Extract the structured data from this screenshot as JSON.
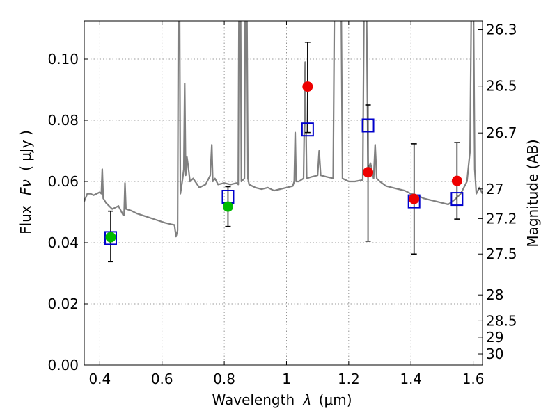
{
  "chart_data": {
    "type": "scatter",
    "xlabel_prefix": "Wavelength",
    "xlabel_symbol": "λ",
    "xlabel_unit": "(μm)",
    "ylabel_prefix": "Flux",
    "ylabel_symbol": "Fν",
    "ylabel_unit": "( μJy )",
    "y2label": "Magnitude (AB)",
    "xlim": [
      0.35,
      1.63
    ],
    "ylim": [
      0.0,
      0.1125
    ],
    "grid": true,
    "x_ticks": [
      0.4,
      0.6,
      0.8,
      1.0,
      1.2,
      1.4,
      1.6
    ],
    "x_tick_labels": [
      "0.4",
      "0.6",
      "0.8",
      "1",
      "1.2",
      "1.4",
      "1.6"
    ],
    "y_ticks": [
      0.0,
      0.02,
      0.04,
      0.06,
      0.08,
      0.1
    ],
    "y_tick_labels": [
      "0.00",
      "0.02",
      "0.04",
      "0.06",
      "0.08",
      "0.10"
    ],
    "mag_ticks": [
      26.3,
      26.5,
      26.7,
      27.0,
      27.2,
      27.5,
      28.0,
      28.5,
      29.0,
      30.0
    ],
    "mag_tick_labels": [
      "26.3",
      "26.5",
      "26.7",
      "27",
      "27.2",
      "27.5",
      "28",
      "28.5",
      "29",
      "30"
    ],
    "colors": {
      "model": "#808080",
      "green": "#00bb00",
      "red": "#ee0000",
      "square": "#0000cc",
      "grid": "#777777"
    },
    "model_spectrum": [
      [
        0.35,
        0.0535
      ],
      [
        0.36,
        0.056
      ],
      [
        0.37,
        0.056
      ],
      [
        0.38,
        0.0555
      ],
      [
        0.39,
        0.056
      ],
      [
        0.4,
        0.0565
      ],
      [
        0.405,
        0.056
      ],
      [
        0.408,
        0.064
      ],
      [
        0.411,
        0.0545
      ],
      [
        0.42,
        0.053
      ],
      [
        0.44,
        0.051
      ],
      [
        0.46,
        0.052
      ],
      [
        0.475,
        0.049
      ],
      [
        0.478,
        0.049
      ],
      [
        0.481,
        0.0595
      ],
      [
        0.484,
        0.051
      ],
      [
        0.5,
        0.0505
      ],
      [
        0.52,
        0.0495
      ],
      [
        0.55,
        0.0485
      ],
      [
        0.58,
        0.0475
      ],
      [
        0.61,
        0.0465
      ],
      [
        0.63,
        0.046
      ],
      [
        0.64,
        0.0458
      ],
      [
        0.645,
        0.042
      ],
      [
        0.65,
        0.044
      ],
      [
        0.653,
        0.13
      ],
      [
        0.656,
        0.13
      ],
      [
        0.659,
        0.056
      ],
      [
        0.665,
        0.06
      ],
      [
        0.67,
        0.064
      ],
      [
        0.673,
        0.092
      ],
      [
        0.676,
        0.062
      ],
      [
        0.68,
        0.068
      ],
      [
        0.684,
        0.065
      ],
      [
        0.69,
        0.06
      ],
      [
        0.7,
        0.061
      ],
      [
        0.72,
        0.058
      ],
      [
        0.74,
        0.059
      ],
      [
        0.755,
        0.062
      ],
      [
        0.76,
        0.072
      ],
      [
        0.763,
        0.06
      ],
      [
        0.77,
        0.061
      ],
      [
        0.78,
        0.059
      ],
      [
        0.8,
        0.0595
      ],
      [
        0.82,
        0.059
      ],
      [
        0.84,
        0.0595
      ],
      [
        0.845,
        0.059
      ],
      [
        0.848,
        0.13
      ],
      [
        0.852,
        0.13
      ],
      [
        0.855,
        0.06
      ],
      [
        0.865,
        0.061
      ],
      [
        0.868,
        0.13
      ],
      [
        0.872,
        0.13
      ],
      [
        0.876,
        0.061
      ],
      [
        0.88,
        0.059
      ],
      [
        0.9,
        0.058
      ],
      [
        0.92,
        0.0575
      ],
      [
        0.94,
        0.058
      ],
      [
        0.96,
        0.057
      ],
      [
        0.98,
        0.0575
      ],
      [
        1.0,
        0.058
      ],
      [
        1.02,
        0.0585
      ],
      [
        1.025,
        0.06
      ],
      [
        1.028,
        0.076
      ],
      [
        1.031,
        0.06
      ],
      [
        1.04,
        0.06
      ],
      [
        1.055,
        0.061
      ],
      [
        1.06,
        0.099
      ],
      [
        1.065,
        0.061
      ],
      [
        1.08,
        0.0615
      ],
      [
        1.1,
        0.062
      ],
      [
        1.105,
        0.07
      ],
      [
        1.11,
        0.062
      ],
      [
        1.13,
        0.0615
      ],
      [
        1.15,
        0.061
      ],
      [
        1.155,
        0.13
      ],
      [
        1.175,
        0.13
      ],
      [
        1.18,
        0.061
      ],
      [
        1.2,
        0.06
      ],
      [
        1.22,
        0.06
      ],
      [
        1.245,
        0.0605
      ],
      [
        1.25,
        0.13
      ],
      [
        1.256,
        0.13
      ],
      [
        1.262,
        0.064
      ],
      [
        1.27,
        0.066
      ],
      [
        1.28,
        0.061
      ],
      [
        1.285,
        0.072
      ],
      [
        1.29,
        0.061
      ],
      [
        1.3,
        0.06
      ],
      [
        1.32,
        0.0585
      ],
      [
        1.34,
        0.058
      ],
      [
        1.36,
        0.0575
      ],
      [
        1.38,
        0.057
      ],
      [
        1.4,
        0.056
      ],
      [
        1.42,
        0.0555
      ],
      [
        1.44,
        0.0545
      ],
      [
        1.46,
        0.054
      ],
      [
        1.48,
        0.0535
      ],
      [
        1.5,
        0.053
      ],
      [
        1.52,
        0.0525
      ],
      [
        1.54,
        0.054
      ],
      [
        1.56,
        0.056
      ],
      [
        1.58,
        0.06
      ],
      [
        1.59,
        0.07
      ],
      [
        1.595,
        0.13
      ],
      [
        1.6,
        0.13
      ],
      [
        1.605,
        0.064
      ],
      [
        1.61,
        0.056
      ],
      [
        1.62,
        0.058
      ],
      [
        1.63,
        0.056
      ]
    ],
    "green_points": [
      {
        "x": 0.435,
        "y": 0.0418,
        "yerr_low": 0.008,
        "yerr_high": 0.0085
      },
      {
        "x": 0.812,
        "y": 0.0518,
        "yerr_low": 0.0065,
        "yerr_high": 0.0065
      }
    ],
    "red_points": [
      {
        "x": 1.068,
        "y": 0.091,
        "yerr_low": 0.015,
        "yerr_high": 0.0145
      },
      {
        "x": 1.262,
        "y": 0.063,
        "yerr_low": 0.0225,
        "yerr_high": 0.022
      },
      {
        "x": 1.41,
        "y": 0.0543,
        "yerr_low": 0.018,
        "yerr_high": 0.018
      },
      {
        "x": 1.548,
        "y": 0.0602,
        "yerr_low": 0.0125,
        "yerr_high": 0.0125
      }
    ],
    "model_squares": [
      {
        "x": 0.435,
        "y": 0.0415
      },
      {
        "x": 0.812,
        "y": 0.055
      },
      {
        "x": 1.068,
        "y": 0.077
      },
      {
        "x": 1.262,
        "y": 0.0783
      },
      {
        "x": 1.41,
        "y": 0.0535
      },
      {
        "x": 1.548,
        "y": 0.0543
      }
    ]
  }
}
